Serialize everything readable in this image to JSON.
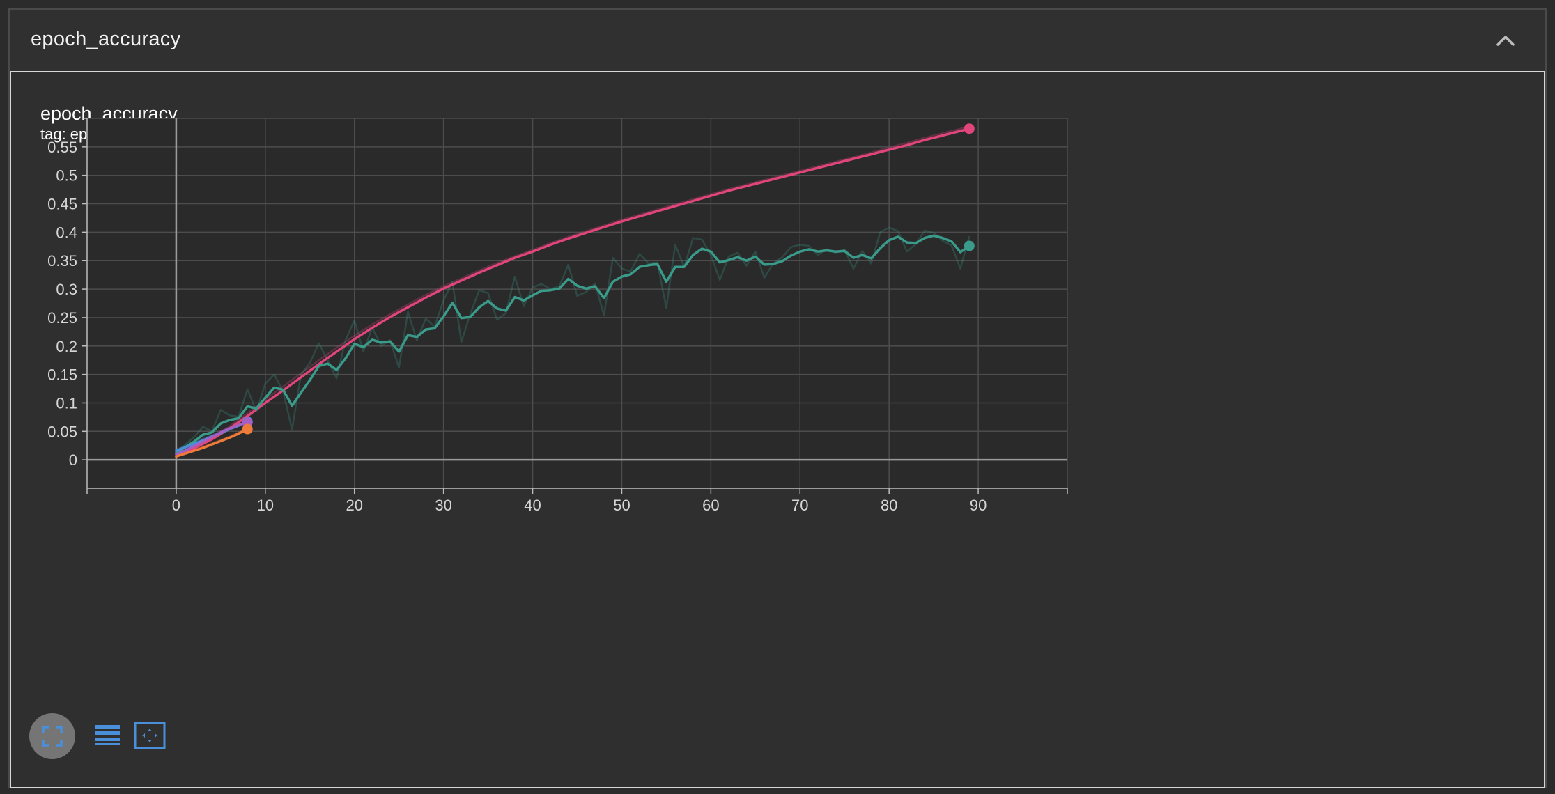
{
  "header": {
    "title": "epoch_accuracy"
  },
  "chart_data": {
    "type": "line",
    "title": "epoch_accuracy",
    "subtitle": "tag: epoch_accuracy",
    "xlabel": "",
    "ylabel": "",
    "xlim": [
      -10,
      100
    ],
    "ylim": [
      -0.05,
      0.6
    ],
    "x_ticks": [
      0,
      10,
      20,
      30,
      40,
      50,
      60,
      70,
      80,
      90
    ],
    "y_ticks": [
      0,
      0.05,
      0.1,
      0.15,
      0.2,
      0.25,
      0.3,
      0.35,
      0.4,
      0.45,
      0.5,
      0.55
    ],
    "grid": true,
    "series": [
      {
        "color": "#e0457b",
        "x": [
          0,
          2,
          4,
          6,
          8,
          10,
          12,
          14,
          16,
          18,
          20,
          22,
          24,
          26,
          28,
          30,
          32,
          34,
          36,
          38,
          40,
          42,
          44,
          46,
          48,
          50,
          52,
          54,
          56,
          58,
          60,
          62,
          64,
          66,
          68,
          70,
          72,
          74,
          76,
          78,
          80,
          82,
          84,
          86,
          88,
          89
        ],
        "values": [
          0.007,
          0.02,
          0.036,
          0.055,
          0.077,
          0.1,
          0.122,
          0.145,
          0.168,
          0.19,
          0.212,
          0.232,
          0.251,
          0.268,
          0.285,
          0.301,
          0.315,
          0.329,
          0.342,
          0.355,
          0.366,
          0.378,
          0.389,
          0.399,
          0.409,
          0.419,
          0.428,
          0.437,
          0.446,
          0.455,
          0.464,
          0.473,
          0.481,
          0.489,
          0.497,
          0.505,
          0.513,
          0.521,
          0.529,
          0.537,
          0.545,
          0.553,
          0.562,
          0.57,
          0.578,
          0.582
        ],
        "raw_values": [
          0.008,
          0.022,
          0.039,
          0.059,
          0.082,
          0.106,
          0.129,
          0.152,
          0.175,
          0.197,
          0.218,
          0.238,
          0.256,
          0.273,
          0.29,
          0.305,
          0.319,
          0.333,
          0.346,
          0.358,
          0.369,
          0.381,
          0.392,
          0.402,
          0.412,
          0.422,
          0.431,
          0.44,
          0.449,
          0.458,
          0.467,
          0.476,
          0.484,
          0.492,
          0.5,
          0.508,
          0.516,
          0.524,
          0.532,
          0.54,
          0.549,
          0.557,
          0.566,
          0.574,
          0.582,
          0.586
        ]
      },
      {
        "color": "#3a9b8a",
        "x": [
          0,
          1,
          2,
          3,
          4,
          5,
          6,
          7,
          8,
          9,
          10,
          11,
          12,
          13,
          14,
          15,
          16,
          17,
          18,
          19,
          20,
          21,
          22,
          23,
          24,
          25,
          26,
          27,
          28,
          29,
          30,
          31,
          32,
          33,
          34,
          35,
          36,
          37,
          38,
          39,
          40,
          41,
          42,
          43,
          44,
          45,
          46,
          47,
          48,
          49,
          50,
          51,
          52,
          53,
          54,
          55,
          56,
          57,
          58,
          59,
          60,
          61,
          62,
          63,
          64,
          65,
          66,
          67,
          68,
          69,
          70,
          71,
          72,
          73,
          74,
          75,
          76,
          77,
          78,
          79,
          80,
          81,
          82,
          83,
          84,
          85,
          86,
          87,
          88,
          89
        ],
        "values": [
          0.012,
          0.022,
          0.032,
          0.044,
          0.048,
          0.064,
          0.07,
          0.073,
          0.094,
          0.09,
          0.109,
          0.127,
          0.123,
          0.095,
          0.118,
          0.14,
          0.165,
          0.169,
          0.158,
          0.178,
          0.204,
          0.198,
          0.211,
          0.206,
          0.208,
          0.19,
          0.219,
          0.216,
          0.229,
          0.231,
          0.252,
          0.276,
          0.249,
          0.251,
          0.268,
          0.279,
          0.266,
          0.262,
          0.286,
          0.28,
          0.289,
          0.297,
          0.298,
          0.301,
          0.318,
          0.306,
          0.301,
          0.305,
          0.284,
          0.313,
          0.322,
          0.326,
          0.339,
          0.342,
          0.344,
          0.313,
          0.339,
          0.339,
          0.36,
          0.371,
          0.366,
          0.347,
          0.351,
          0.356,
          0.35,
          0.357,
          0.343,
          0.344,
          0.349,
          0.359,
          0.366,
          0.37,
          0.366,
          0.368,
          0.366,
          0.367,
          0.355,
          0.36,
          0.354,
          0.372,
          0.386,
          0.392,
          0.382,
          0.381,
          0.39,
          0.394,
          0.39,
          0.384,
          0.365,
          0.376
        ],
        "raw_values": [
          0.014,
          0.026,
          0.04,
          0.058,
          0.05,
          0.088,
          0.078,
          0.076,
          0.124,
          0.085,
          0.134,
          0.15,
          0.12,
          0.053,
          0.15,
          0.17,
          0.205,
          0.175,
          0.143,
          0.21,
          0.245,
          0.19,
          0.232,
          0.2,
          0.21,
          0.162,
          0.26,
          0.21,
          0.248,
          0.234,
          0.28,
          0.313,
          0.207,
          0.256,
          0.298,
          0.293,
          0.246,
          0.258,
          0.322,
          0.27,
          0.303,
          0.309,
          0.3,
          0.305,
          0.343,
          0.288,
          0.295,
          0.31,
          0.254,
          0.355,
          0.336,
          0.331,
          0.362,
          0.345,
          0.347,
          0.267,
          0.378,
          0.339,
          0.39,
          0.387,
          0.36,
          0.316,
          0.357,
          0.364,
          0.341,
          0.366,
          0.32,
          0.345,
          0.356,
          0.374,
          0.378,
          0.376,
          0.36,
          0.37,
          0.364,
          0.369,
          0.336,
          0.367,
          0.345,
          0.4,
          0.408,
          0.402,
          0.366,
          0.379,
          0.403,
          0.399,
          0.385,
          0.377,
          0.336,
          0.393
        ]
      },
      {
        "color": "#4a8fd9",
        "x": [
          0,
          1,
          2,
          3,
          4,
          5,
          6,
          7,
          8
        ],
        "values": [
          0.016,
          0.022,
          0.028,
          0.034,
          0.041,
          0.047,
          0.054,
          0.06,
          0.067
        ],
        "raw_values": [
          0.018,
          0.024,
          0.03,
          0.037,
          0.043,
          0.049,
          0.056,
          0.062,
          0.068
        ]
      },
      {
        "color": "#a45fc4",
        "x": [
          0,
          1,
          2,
          3,
          4,
          5,
          6,
          7,
          8
        ],
        "values": [
          0.01,
          0.016,
          0.024,
          0.032,
          0.04,
          0.048,
          0.055,
          0.061,
          0.066
        ],
        "raw_values": [
          0.011,
          0.018,
          0.026,
          0.034,
          0.042,
          0.05,
          0.057,
          0.062,
          0.067
        ]
      },
      {
        "color": "#ef7b3a",
        "x": [
          0,
          1,
          2,
          3,
          4,
          5,
          6,
          7,
          8
        ],
        "values": [
          0.006,
          0.011,
          0.016,
          0.021,
          0.027,
          0.033,
          0.039,
          0.046,
          0.054
        ],
        "raw_values": [
          0.007,
          0.012,
          0.017,
          0.023,
          0.029,
          0.035,
          0.041,
          0.048,
          0.056
        ]
      }
    ]
  },
  "toolbar": {
    "icons": [
      "fullscreen-icon",
      "toggle-y-log-icon",
      "fit-domain-icon"
    ],
    "accent": "#4a8fd9"
  }
}
